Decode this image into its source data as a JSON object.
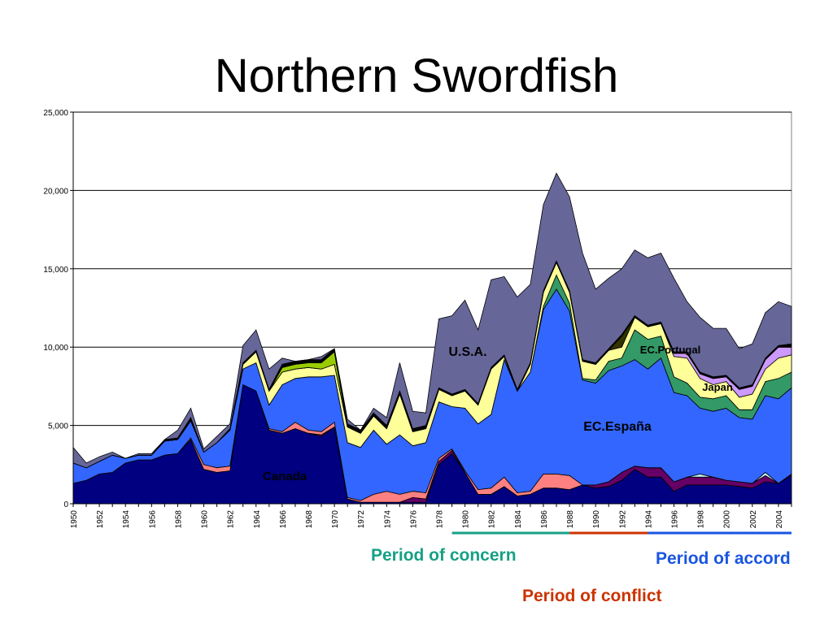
{
  "title": "Northern Swordfish",
  "colors": {
    "canada": "#000080",
    "usa": "#666699",
    "espana": "#3366ff",
    "portugal": "#339966",
    "japan": "#ffff99",
    "other": [
      "#ff8080",
      "#660066",
      "#ccffff",
      "#cc99ff",
      "#99cc00",
      "#333300",
      "#000000"
    ]
  },
  "chart_data": {
    "type": "area",
    "title": "Northern Swordfish",
    "xlabel": "",
    "ylabel": "",
    "ylim": [
      0,
      25000
    ],
    "yticks": [
      "0",
      "5,000",
      "10,000",
      "15,000",
      "20,000",
      "25,000"
    ],
    "x": [
      1950,
      1951,
      1952,
      1953,
      1954,
      1955,
      1956,
      1957,
      1958,
      1959,
      1960,
      1961,
      1962,
      1963,
      1964,
      1965,
      1966,
      1967,
      1968,
      1969,
      1970,
      1971,
      1972,
      1973,
      1974,
      1975,
      1976,
      1977,
      1978,
      1979,
      1980,
      1981,
      1982,
      1983,
      1984,
      1985,
      1986,
      1987,
      1988,
      1989,
      1990,
      1991,
      1992,
      1993,
      1994,
      1995,
      1996,
      1997,
      1998,
      1999,
      2000,
      2001,
      2002,
      2003,
      2004,
      2005
    ],
    "xtick_labels": [
      "1950",
      "1952",
      "1954",
      "1956",
      "1958",
      "1960",
      "1962",
      "1964",
      "1966",
      "1968",
      "1970",
      "1972",
      "1974",
      "1976",
      "1978",
      "1980",
      "1982",
      "1984",
      "1986",
      "1988",
      "1990",
      "1992",
      "1994",
      "1996",
      "1998",
      "2000",
      "2002",
      "2004"
    ],
    "grid": true,
    "series": [
      {
        "name": "Canada",
        "color": "#000080",
        "values": [
          1300,
          1500,
          1900,
          2000,
          2600,
          2800,
          2800,
          3100,
          3200,
          4100,
          2200,
          2000,
          2100,
          7600,
          7200,
          4700,
          4500,
          4800,
          4500,
          4300,
          4900,
          300,
          100,
          100,
          100,
          100,
          100,
          100,
          2500,
          3200,
          2000,
          600,
          600,
          1100,
          500,
          600,
          1000,
          1000,
          900,
          1200,
          1000,
          1100,
          1500,
          2200,
          1700,
          1700,
          800,
          1200,
          1200,
          1200,
          1200,
          1100,
          1000,
          1400,
          1300,
          1800
        ]
      },
      {
        "name": "",
        "color": "#660066",
        "values": [
          0,
          0,
          0,
          0,
          0,
          0,
          0,
          0,
          0,
          0,
          0,
          0,
          0,
          0,
          0,
          0,
          0,
          0,
          0,
          100,
          0,
          0,
          0,
          0,
          0,
          0,
          300,
          200,
          200,
          200,
          0,
          0,
          0,
          0,
          0,
          0,
          0,
          0,
          0,
          0,
          200,
          300,
          500,
          200,
          600,
          600,
          600,
          500,
          500,
          500,
          300,
          300,
          300,
          400,
          0,
          100
        ]
      },
      {
        "name": "",
        "color": "#ccffff",
        "values": [
          0,
          0,
          0,
          0,
          0,
          0,
          0,
          0,
          0,
          0,
          0,
          0,
          0,
          0,
          0,
          0,
          0,
          0,
          0,
          0,
          0,
          0,
          0,
          0,
          0,
          0,
          0,
          0,
          0,
          0,
          0,
          0,
          0,
          0,
          0,
          0,
          0,
          0,
          0,
          0,
          0,
          0,
          0,
          0,
          0,
          0,
          0,
          0,
          200,
          0,
          0,
          0,
          0,
          200,
          0,
          0
        ]
      },
      {
        "name": "",
        "color": "#ff8080",
        "values": [
          0,
          0,
          0,
          0,
          0,
          0,
          0,
          0,
          0,
          100,
          300,
          300,
          300,
          0,
          0,
          100,
          100,
          400,
          200,
          200,
          300,
          100,
          100,
          500,
          700,
          500,
          400,
          400,
          200,
          100,
          100,
          300,
          400,
          600,
          200,
          200,
          900,
          900,
          900,
          0,
          0,
          0,
          0,
          0,
          0,
          0,
          0,
          0,
          0,
          0,
          0,
          0,
          0,
          0,
          0,
          0
        ]
      },
      {
        "name": "EC.España",
        "color": "#3366ff",
        "values": [
          1300,
          800,
          800,
          1100,
          300,
          300,
          300,
          900,
          900,
          1100,
          800,
          1600,
          2300,
          1000,
          1800,
          1500,
          3000,
          2800,
          3400,
          3500,
          3000,
          3500,
          3400,
          4100,
          3000,
          3800,
          2900,
          3200,
          3600,
          2700,
          4000,
          4200,
          4700,
          7500,
          6500,
          7600,
          10500,
          11800,
          10500,
          6700,
          6500,
          7100,
          6800,
          6800,
          6300,
          7000,
          5700,
          5200,
          4200,
          4200,
          4600,
          4100,
          4100,
          4900,
          5400,
          5500
        ]
      },
      {
        "name": "EC.Portugal",
        "color": "#339966",
        "values": [
          0,
          0,
          0,
          0,
          0,
          0,
          0,
          0,
          0,
          0,
          0,
          0,
          0,
          0,
          0,
          0,
          0,
          0,
          0,
          0,
          0,
          0,
          0,
          0,
          0,
          0,
          0,
          0,
          0,
          0,
          0,
          0,
          0,
          0,
          0,
          0,
          200,
          900,
          500,
          100,
          200,
          600,
          500,
          1900,
          1900,
          1400,
          1000,
          800,
          700,
          800,
          800,
          500,
          600,
          900,
          1300,
          1000
        ]
      },
      {
        "name": "Japan",
        "color": "#ffff99",
        "values": [
          0,
          0,
          0,
          0,
          0,
          0,
          0,
          0,
          0,
          0,
          0,
          0,
          0,
          300,
          700,
          900,
          800,
          600,
          600,
          500,
          700,
          1000,
          900,
          900,
          1000,
          2600,
          900,
          900,
          800,
          700,
          1100,
          1200,
          2900,
          200,
          0,
          500,
          900,
          800,
          700,
          1100,
          1000,
          700,
          700,
          800,
          800,
          800,
          1300,
          1600,
          1200,
          900,
          900,
          800,
          1000,
          800,
          1300,
          1100
        ]
      },
      {
        "name": "",
        "color": "#cc99ff",
        "values": [
          0,
          0,
          0,
          0,
          0,
          0,
          0,
          0,
          0,
          0,
          0,
          0,
          0,
          0,
          0,
          0,
          0,
          0,
          0,
          0,
          0,
          0,
          0,
          0,
          0,
          0,
          0,
          0,
          0,
          0,
          0,
          0,
          0,
          0,
          0,
          0,
          0,
          0,
          0,
          0,
          0,
          0,
          0,
          0,
          0,
          0,
          200,
          300,
          300,
          400,
          300,
          500,
          500,
          600,
          700,
          500
        ]
      },
      {
        "name": "",
        "color": "#99cc00",
        "values": [
          0,
          0,
          0,
          0,
          0,
          0,
          0,
          0,
          0,
          0,
          0,
          0,
          0,
          0,
          0,
          0,
          300,
          300,
          300,
          400,
          800,
          0,
          0,
          0,
          0,
          0,
          0,
          0,
          0,
          0,
          0,
          0,
          0,
          0,
          0,
          0,
          0,
          0,
          0,
          0,
          0,
          0,
          0,
          0,
          0,
          0,
          0,
          0,
          0,
          0,
          0,
          0,
          0,
          0,
          0,
          0
        ]
      },
      {
        "name": "",
        "color": "#333300",
        "values": [
          0,
          0,
          0,
          0,
          0,
          0,
          0,
          0,
          0,
          0,
          0,
          0,
          0,
          0,
          0,
          0,
          0,
          0,
          0,
          0,
          0,
          0,
          0,
          0,
          0,
          0,
          0,
          0,
          0,
          0,
          0,
          0,
          0,
          0,
          0,
          0,
          0,
          0,
          0,
          0,
          0,
          0,
          700,
          0,
          0,
          0,
          0,
          0,
          0,
          0,
          0,
          0,
          0,
          0,
          0,
          0
        ]
      },
      {
        "name": "",
        "color": "#000000",
        "values": [
          0,
          0,
          0,
          0,
          0,
          0,
          0,
          100,
          100,
          200,
          0,
          0,
          100,
          100,
          100,
          100,
          200,
          200,
          200,
          200,
          200,
          200,
          200,
          200,
          200,
          200,
          200,
          200,
          100,
          100,
          100,
          100,
          100,
          100,
          100,
          100,
          100,
          100,
          100,
          100,
          100,
          100,
          100,
          100,
          100,
          100,
          100,
          100,
          100,
          100,
          100,
          100,
          100,
          100,
          100,
          200
        ]
      },
      {
        "name": "U.S.A.",
        "color": "#666699",
        "values": [
          1000,
          300,
          300,
          200,
          0,
          100,
          100,
          0,
          500,
          600,
          200,
          400,
          300,
          1100,
          1300,
          1300,
          400,
          0,
          0,
          200,
          0,
          300,
          0,
          300,
          500,
          1800,
          1100,
          800,
          4400,
          5000,
          5700,
          4700,
          5600,
          5000,
          5900,
          5000,
          5500,
          5600,
          6000,
          6800,
          4700,
          4500,
          4200,
          4200,
          4300,
          4400,
          4700,
          3200,
          3500,
          3100,
          3000,
          2500,
          2600,
          2900,
          2800,
          2400
        ]
      }
    ],
    "annotations": [
      "U.S.A.",
      "EC.Portugal",
      "Japan",
      "EC.España",
      "Canada"
    ]
  },
  "periods": {
    "concern": {
      "label": "Period of concern",
      "from": 1979,
      "to": 1988,
      "color": "#16a085"
    },
    "conflict": {
      "label": "Period of conflict",
      "from": 1988,
      "to": 1994,
      "color": "#cc3300"
    },
    "accord": {
      "label": "Period of accord",
      "from": 1994,
      "to": 2005,
      "color": "#1a55e0"
    }
  }
}
